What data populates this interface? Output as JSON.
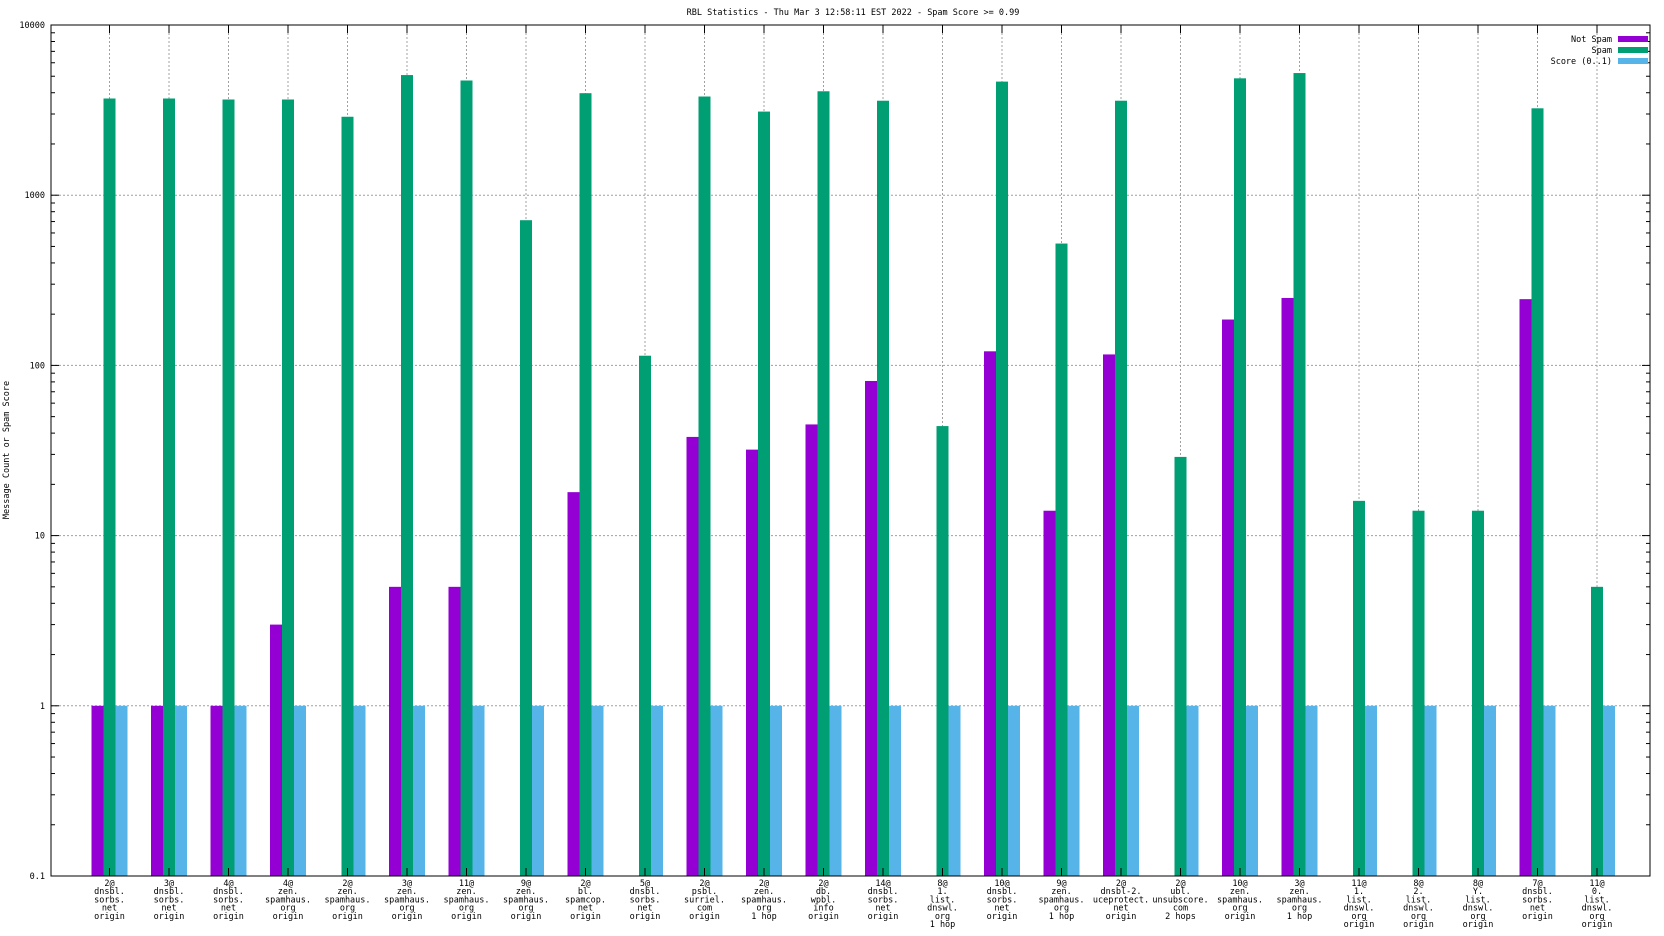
{
  "chart_data": {
    "type": "bar",
    "title": "RBL Statistics - Thu Mar  3 12:58:11 EST 2022 - Spam Score >= 0.99",
    "xlabel": "",
    "ylabel": "Message Count or Spam Score",
    "yscale": "log",
    "ylim": [
      0.1,
      10000
    ],
    "yticks": [
      "0.1",
      "1",
      "10",
      "100",
      "1000",
      "10000"
    ],
    "grid": true,
    "legend_position": "top-right",
    "categories": [
      [
        "2@",
        "dnsbl.",
        "sorbs.",
        "net",
        "origin"
      ],
      [
        "3@",
        "dnsbl.",
        "sorbs.",
        "net",
        "origin"
      ],
      [
        "4@",
        "dnsbl.",
        "sorbs.",
        "net",
        "origin"
      ],
      [
        "4@",
        "zen.",
        "spamhaus.",
        "org",
        "origin"
      ],
      [
        "2@",
        "zen.",
        "spamhaus.",
        "org",
        "origin"
      ],
      [
        "3@",
        "zen.",
        "spamhaus.",
        "org",
        "origin"
      ],
      [
        "11@",
        "zen.",
        "spamhaus.",
        "org",
        "origin"
      ],
      [
        "9@",
        "zen.",
        "spamhaus.",
        "org",
        "origin"
      ],
      [
        "2@",
        "bl.",
        "spamcop.",
        "net",
        "origin"
      ],
      [
        "5@",
        "dnsbl.",
        "sorbs.",
        "net",
        "origin"
      ],
      [
        "2@",
        "psbl.",
        "surriel.",
        "com",
        "origin"
      ],
      [
        "2@",
        "zen.",
        "spamhaus.",
        "org",
        "1 hop"
      ],
      [
        "2@",
        "db.",
        "wpbl.",
        "info",
        "origin"
      ],
      [
        "14@",
        "dnsbl.",
        "sorbs.",
        "net",
        "origin"
      ],
      [
        "8@",
        "1.",
        "list.",
        "dnswl.",
        "org",
        "1 hop"
      ],
      [
        "10@",
        "dnsbl.",
        "sorbs.",
        "net",
        "origin"
      ],
      [
        "9@",
        "zen.",
        "spamhaus.",
        "org",
        "1 hop"
      ],
      [
        "2@",
        "dnsbl-2.",
        "uceprotect.",
        "net",
        "origin"
      ],
      [
        "2@",
        "ubl.",
        "unsubscore.",
        "com",
        "2 hops"
      ],
      [
        "10@",
        "zen.",
        "spamhaus.",
        "org",
        "origin"
      ],
      [
        "3@",
        "zen.",
        "spamhaus.",
        "org",
        "1 hop"
      ],
      [
        "11@",
        "1.",
        "list.",
        "dnswl.",
        "org",
        "origin"
      ],
      [
        "8@",
        "2.",
        "list.",
        "dnswl.",
        "org",
        "origin"
      ],
      [
        "8@",
        "Y.",
        "list.",
        "dnswl.",
        "org",
        "origin"
      ],
      [
        "7@",
        "dnsbl.",
        "sorbs.",
        "net",
        "origin"
      ],
      [
        "11@",
        "0.",
        "list.",
        "dnswl.",
        "org",
        "origin"
      ]
    ],
    "series": [
      {
        "name": "Not Spam",
        "color": "#9400d3",
        "values": [
          1,
          1,
          1,
          3,
          null,
          5,
          5,
          null,
          18,
          null,
          38,
          32,
          45,
          81,
          null,
          121,
          14,
          116,
          null,
          186,
          249,
          null,
          null,
          null,
          245,
          null
        ]
      },
      {
        "name": "Spam",
        "color": "#009e73",
        "values": [
          3700,
          3700,
          3650,
          3650,
          2890,
          5080,
          4720,
          713,
          3975,
          114,
          3800,
          3100,
          4080,
          3590,
          44,
          4650,
          520,
          3590,
          29,
          4860,
          5220,
          16,
          14,
          14,
          3240,
          5
        ]
      },
      {
        "name": "Score (0..1)",
        "color": "#56b4e9",
        "values": [
          1,
          1,
          1,
          1,
          1,
          1,
          1,
          1,
          1,
          1,
          1,
          1,
          1,
          1,
          1,
          1,
          1,
          1,
          1,
          1,
          1,
          1,
          1,
          1,
          1,
          1
        ]
      }
    ]
  }
}
